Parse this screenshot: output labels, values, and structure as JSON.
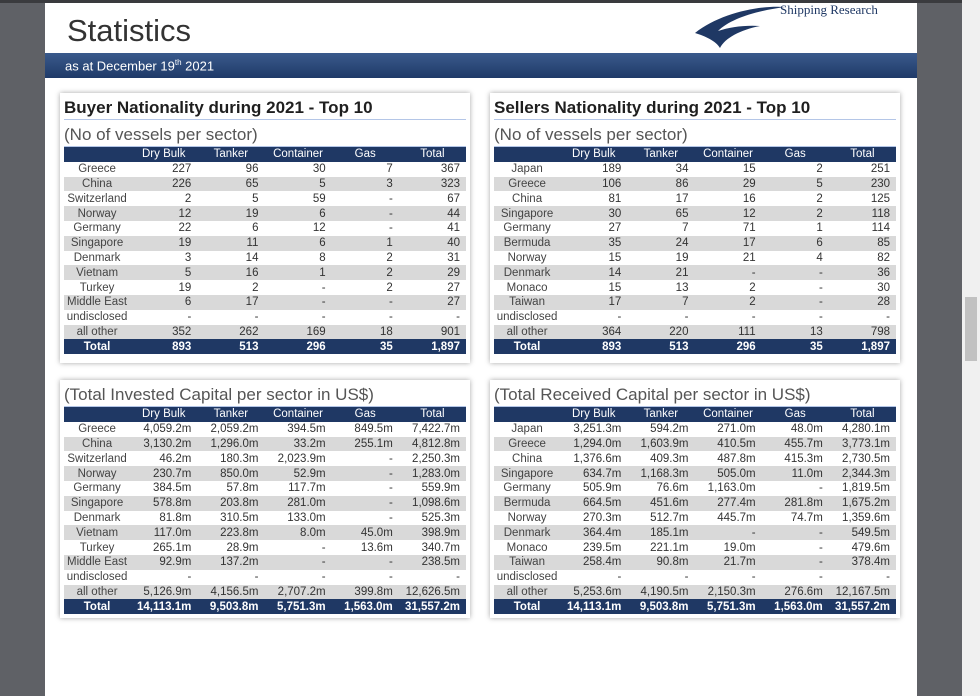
{
  "header": {
    "title": "Statistics",
    "date": {
      "text": "as at December 19",
      "sup": "th",
      "year": "2021"
    }
  },
  "logo": {
    "text": "Shipping Research"
  },
  "tables": [
    {
      "title": "Buyer Nationality during 2021 - Top 10",
      "subtitle": "(No of vessels per sector)",
      "columns": [
        "Dry Bulk",
        "Tanker",
        "Container",
        "Gas",
        "Total"
      ],
      "rows": [
        {
          "label": "Greece",
          "cells": [
            "227",
            "96",
            "30",
            "7",
            "367"
          ]
        },
        {
          "label": "China",
          "cells": [
            "226",
            "65",
            "5",
            "3",
            "323"
          ]
        },
        {
          "label": "Switzerland",
          "cells": [
            "2",
            "5",
            "59",
            "-",
            "67"
          ]
        },
        {
          "label": "Norway",
          "cells": [
            "12",
            "19",
            "6",
            "-",
            "44"
          ]
        },
        {
          "label": "Germany",
          "cells": [
            "22",
            "6",
            "12",
            "-",
            "41"
          ]
        },
        {
          "label": "Singapore",
          "cells": [
            "19",
            "11",
            "6",
            "1",
            "40"
          ]
        },
        {
          "label": "Denmark",
          "cells": [
            "3",
            "14",
            "8",
            "2",
            "31"
          ]
        },
        {
          "label": "Vietnam",
          "cells": [
            "5",
            "16",
            "1",
            "2",
            "29"
          ]
        },
        {
          "label": "Turkey",
          "cells": [
            "19",
            "2",
            "-",
            "2",
            "27"
          ]
        },
        {
          "label": "Middle East",
          "cells": [
            "6",
            "17",
            "-",
            "-",
            "27"
          ]
        },
        {
          "label": "undisclosed",
          "cells": [
            "-",
            "-",
            "-",
            "-",
            "-"
          ]
        },
        {
          "label": "all other",
          "cells": [
            "352",
            "262",
            "169",
            "18",
            "901"
          ]
        },
        {
          "label": "Total",
          "cells": [
            "893",
            "513",
            "296",
            "35",
            "1,897"
          ]
        }
      ]
    },
    {
      "title": "Sellers Nationality during 2021 - Top 10",
      "subtitle": "(No of vessels per sector)",
      "columns": [
        "Dry Bulk",
        "Tanker",
        "Container",
        "Gas",
        "Total"
      ],
      "rows": [
        {
          "label": "Japan",
          "cells": [
            "189",
            "34",
            "15",
            "2",
            "251"
          ]
        },
        {
          "label": "Greece",
          "cells": [
            "106",
            "86",
            "29",
            "5",
            "230"
          ]
        },
        {
          "label": "China",
          "cells": [
            "81",
            "17",
            "16",
            "2",
            "125"
          ]
        },
        {
          "label": "Singapore",
          "cells": [
            "30",
            "65",
            "12",
            "2",
            "118"
          ]
        },
        {
          "label": "Germany",
          "cells": [
            "27",
            "7",
            "71",
            "1",
            "114"
          ]
        },
        {
          "label": "Bermuda",
          "cells": [
            "35",
            "24",
            "17",
            "6",
            "85"
          ]
        },
        {
          "label": "Norway",
          "cells": [
            "15",
            "19",
            "21",
            "4",
            "82"
          ]
        },
        {
          "label": "Denmark",
          "cells": [
            "14",
            "21",
            "-",
            "-",
            "36"
          ]
        },
        {
          "label": "Monaco",
          "cells": [
            "15",
            "13",
            "2",
            "-",
            "30"
          ]
        },
        {
          "label": "Taiwan",
          "cells": [
            "17",
            "7",
            "2",
            "-",
            "28"
          ]
        },
        {
          "label": "undisclosed",
          "cells": [
            "-",
            "-",
            "-",
            "-",
            "-"
          ]
        },
        {
          "label": "all other",
          "cells": [
            "364",
            "220",
            "111",
            "13",
            "798"
          ]
        },
        {
          "label": "Total",
          "cells": [
            "893",
            "513",
            "296",
            "35",
            "1,897"
          ]
        }
      ]
    },
    {
      "subtitle": "(Total Invested Capital per sector in US$)",
      "columns": [
        "Dry Bulk",
        "Tanker",
        "Container",
        "Gas",
        "Total"
      ],
      "rows": [
        {
          "label": "Greece",
          "cells": [
            "4,059.2m",
            "2,059.2m",
            "394.5m",
            "849.5m",
            "7,422.7m"
          ]
        },
        {
          "label": "China",
          "cells": [
            "3,130.2m",
            "1,296.0m",
            "33.2m",
            "255.1m",
            "4,812.8m"
          ]
        },
        {
          "label": "Switzerland",
          "cells": [
            "46.2m",
            "180.3m",
            "2,023.9m",
            "-",
            "2,250.3m"
          ]
        },
        {
          "label": "Norway",
          "cells": [
            "230.7m",
            "850.0m",
            "52.9m",
            "-",
            "1,283.0m"
          ]
        },
        {
          "label": "Germany",
          "cells": [
            "384.5m",
            "57.8m",
            "117.7m",
            "-",
            "559.9m"
          ]
        },
        {
          "label": "Singapore",
          "cells": [
            "578.8m",
            "203.8m",
            "281.0m",
            "-",
            "1,098.6m"
          ]
        },
        {
          "label": "Denmark",
          "cells": [
            "81.8m",
            "310.5m",
            "133.0m",
            "-",
            "525.3m"
          ]
        },
        {
          "label": "Vietnam",
          "cells": [
            "117.0m",
            "223.8m",
            "8.0m",
            "45.0m",
            "398.9m"
          ]
        },
        {
          "label": "Turkey",
          "cells": [
            "265.1m",
            "28.9m",
            "-",
            "13.6m",
            "340.7m"
          ]
        },
        {
          "label": "Middle East",
          "cells": [
            "92.9m",
            "137.2m",
            "-",
            "-",
            "238.5m"
          ]
        },
        {
          "label": "undisclosed",
          "cells": [
            "-",
            "-",
            "-",
            "-",
            "-"
          ]
        },
        {
          "label": "all other",
          "cells": [
            "5,126.9m",
            "4,156.5m",
            "2,707.2m",
            "399.8m",
            "12,626.5m"
          ]
        },
        {
          "label": "Total",
          "cells": [
            "14,113.1m",
            "9,503.8m",
            "5,751.3m",
            "1,563.0m",
            "31,557.2m"
          ]
        }
      ]
    },
    {
      "subtitle": "(Total Received Capital per sector in US$)",
      "columns": [
        "Dry Bulk",
        "Tanker",
        "Container",
        "Gas",
        "Total"
      ],
      "rows": [
        {
          "label": "Japan",
          "cells": [
            "3,251.3m",
            "594.2m",
            "271.0m",
            "48.0m",
            "4,280.1m"
          ]
        },
        {
          "label": "Greece",
          "cells": [
            "1,294.0m",
            "1,603.9m",
            "410.5m",
            "455.7m",
            "3,773.1m"
          ]
        },
        {
          "label": "China",
          "cells": [
            "1,376.6m",
            "409.3m",
            "487.8m",
            "415.3m",
            "2,730.5m"
          ]
        },
        {
          "label": "Singapore",
          "cells": [
            "634.7m",
            "1,168.3m",
            "505.0m",
            "11.0m",
            "2,344.3m"
          ]
        },
        {
          "label": "Germany",
          "cells": [
            "505.9m",
            "76.6m",
            "1,163.0m",
            "-",
            "1,819.5m"
          ]
        },
        {
          "label": "Bermuda",
          "cells": [
            "664.5m",
            "451.6m",
            "277.4m",
            "281.8m",
            "1,675.2m"
          ]
        },
        {
          "label": "Norway",
          "cells": [
            "270.3m",
            "512.7m",
            "445.7m",
            "74.7m",
            "1,359.6m"
          ]
        },
        {
          "label": "Denmark",
          "cells": [
            "364.4m",
            "185.1m",
            "-",
            "-",
            "549.5m"
          ]
        },
        {
          "label": "Monaco",
          "cells": [
            "239.5m",
            "221.1m",
            "19.0m",
            "-",
            "479.6m"
          ]
        },
        {
          "label": "Taiwan",
          "cells": [
            "258.4m",
            "90.8m",
            "21.7m",
            "-",
            "378.4m"
          ]
        },
        {
          "label": "undisclosed",
          "cells": [
            "-",
            "-",
            "-",
            "-",
            "-"
          ]
        },
        {
          "label": "all other",
          "cells": [
            "5,253.6m",
            "4,190.5m",
            "2,150.3m",
            "276.6m",
            "12,167.5m"
          ]
        },
        {
          "label": "Total",
          "cells": [
            "14,113.1m",
            "9,503.8m",
            "5,751.3m",
            "1,563.0m",
            "31,557.2m"
          ]
        }
      ]
    }
  ]
}
